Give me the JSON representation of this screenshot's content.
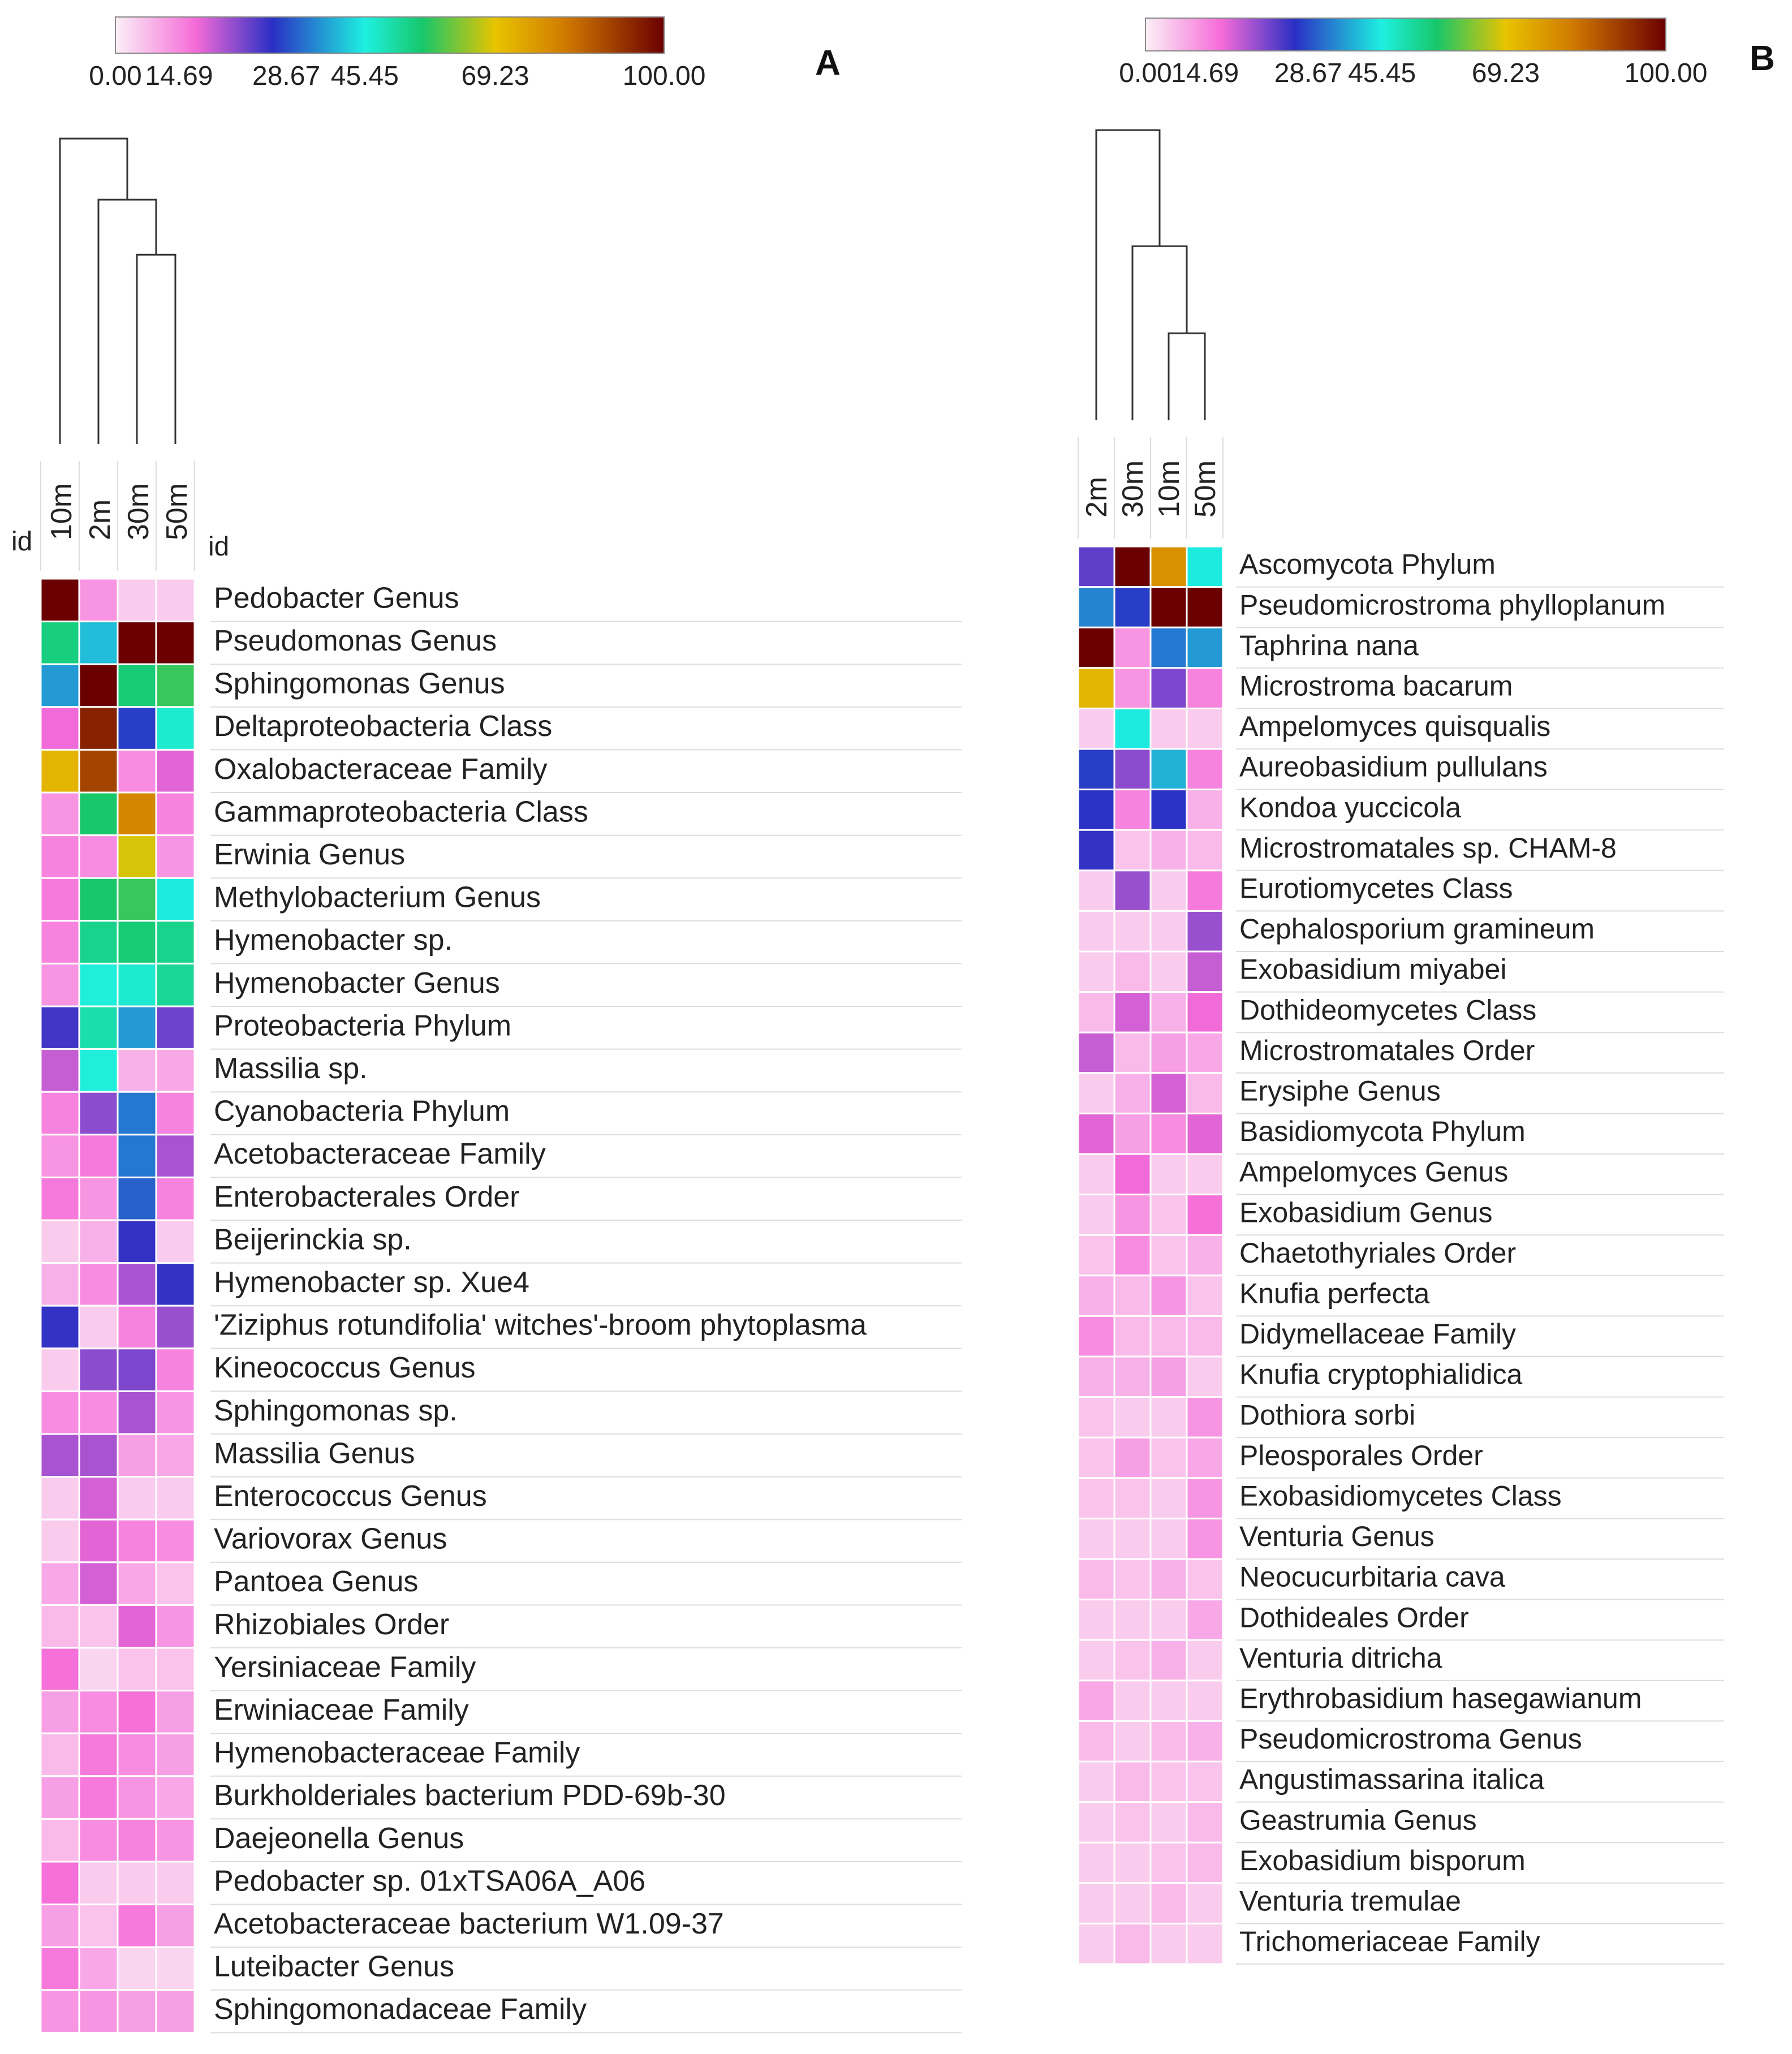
{
  "panels": [
    {
      "id": "A",
      "panel_label": "A",
      "colorbar": {
        "ticks": [
          "0.00",
          "14.69",
          "28.67",
          "45.45",
          "69.23",
          "100.00"
        ],
        "min": 0,
        "max": 100
      },
      "id_left_label": "id",
      "id_right_label": "id",
      "columns": [
        "10m",
        "2m",
        "30m",
        "50m"
      ],
      "dendrogram": [
        {
          "a": 2,
          "b": 3,
          "h": 0.62
        },
        {
          "a": 1,
          "b": 4,
          "h": 0.8
        },
        {
          "a": 0,
          "b": 5,
          "h": 1.0
        }
      ],
      "rows": [
        {
          "label": "Pedobacter Genus",
          "values": [
            100,
            10,
            4,
            4
          ]
        },
        {
          "label": "Pseudomonas Genus",
          "values": [
            54,
            41,
            100,
            100
          ]
        },
        {
          "label": "Sphingomonas Genus",
          "values": [
            38,
            100,
            55,
            58
          ]
        },
        {
          "label": "Deltaproteobacteria Class",
          "values": [
            15,
            95,
            30,
            47
          ]
        },
        {
          "label": "Oxalobacteraceae Family",
          "values": [
            72,
            90,
            11,
            16
          ]
        },
        {
          "label": "Gammaproteobacteria Class",
          "values": [
            10,
            56,
            80,
            12
          ]
        },
        {
          "label": "Erwinia Genus",
          "values": [
            12,
            11,
            68,
            10
          ]
        },
        {
          "label": "Methylobacterium Genus",
          "values": [
            13,
            56,
            58,
            45
          ]
        },
        {
          "label": "Hymenobacter sp.",
          "values": [
            12,
            53,
            55,
            53
          ]
        },
        {
          "label": "Hymenobacter Genus",
          "values": [
            10,
            46,
            47,
            52
          ]
        },
        {
          "label": "Proteobacteria Phylum",
          "values": [
            27,
            50,
            38,
            24
          ]
        },
        {
          "label": "Massilia sp.",
          "values": [
            18,
            46,
            7,
            8
          ]
        },
        {
          "label": "Cyanobacteria Phylum",
          "values": [
            12,
            22,
            35,
            12
          ]
        },
        {
          "label": "Acetobacteraceae Family",
          "values": [
            10,
            13,
            35,
            20
          ]
        },
        {
          "label": "Enterobacterales Order",
          "values": [
            13,
            10,
            33,
            12
          ]
        },
        {
          "label": "Beijerinckia sp.",
          "values": [
            4,
            7,
            28,
            4
          ]
        },
        {
          "label": "Hymenobacter sp. Xue4",
          "values": [
            7,
            11,
            20,
            28
          ]
        },
        {
          "label": "'Ziziphus rotundifolia' witches'-broom phytoplasma",
          "values": [
            28,
            4,
            12,
            21
          ]
        },
        {
          "label": "Kineococcus Genus",
          "values": [
            4,
            22,
            23,
            12
          ]
        },
        {
          "label": "Sphingomonas sp.",
          "values": [
            11,
            11,
            20,
            10
          ]
        },
        {
          "label": "Massilia Genus",
          "values": [
            20,
            20,
            9,
            8
          ]
        },
        {
          "label": "Enterococcus Genus",
          "values": [
            4,
            17,
            4,
            4
          ]
        },
        {
          "label": "Variovorax Genus",
          "values": [
            4,
            16,
            12,
            11
          ]
        },
        {
          "label": "Pantoea Genus",
          "values": [
            8,
            17,
            8,
            5
          ]
        },
        {
          "label": "Rhizobiales Order",
          "values": [
            6,
            5,
            16,
            10
          ]
        },
        {
          "label": "Yersiniaceae Family",
          "values": [
            14,
            3,
            5,
            5
          ]
        },
        {
          "label": "Erwiniaceae Family",
          "values": [
            9,
            11,
            14,
            9
          ]
        },
        {
          "label": "Hymenobacteraceae Family",
          "values": [
            6,
            13,
            11,
            9
          ]
        },
        {
          "label": "Burkholderiales bacterium PDD-69b-30",
          "values": [
            9,
            13,
            10,
            8
          ]
        },
        {
          "label": "Daejeonella Genus",
          "values": [
            6,
            11,
            12,
            10
          ]
        },
        {
          "label": "Pedobacter sp. 01xTSA06A_A06",
          "values": [
            14,
            4,
            4,
            4
          ]
        },
        {
          "label": "Acetobacteraceae bacterium W1.09-37",
          "values": [
            9,
            5,
            13,
            9
          ]
        },
        {
          "label": "Luteibacter Genus",
          "values": [
            13,
            8,
            3,
            3
          ]
        },
        {
          "label": "Sphingomonadaceae Family",
          "values": [
            10,
            10,
            9,
            9
          ]
        }
      ]
    },
    {
      "id": "B",
      "panel_label": "B",
      "colorbar": {
        "ticks": [
          "0.00",
          "14.69",
          "28.67",
          "45.45",
          "69.23",
          "100.00"
        ],
        "min": 0,
        "max": 100
      },
      "columns": [
        "2m",
        "30m",
        "10m",
        "50m"
      ],
      "dendrogram": [
        {
          "a": 2,
          "b": 3,
          "h": 0.3
        },
        {
          "a": 1,
          "b": 4,
          "h": 0.6
        },
        {
          "a": 0,
          "b": 5,
          "h": 1.0
        }
      ],
      "rows": [
        {
          "label": "Ascomycota Phylum",
          "values": [
            25,
            100,
            78,
            45
          ]
        },
        {
          "label": "Pseudomicrostroma phylloplanum",
          "values": [
            36,
            30,
            100,
            100
          ]
        },
        {
          "label": "Taphrina nana",
          "values": [
            100,
            10,
            35,
            38
          ]
        },
        {
          "label": "Microstroma bacarum",
          "values": [
            72,
            10,
            23,
            12
          ]
        },
        {
          "label": "Ampelomyces quisqualis",
          "values": [
            4,
            45,
            4,
            4
          ]
        },
        {
          "label": "Aureobasidium pullulans",
          "values": [
            30,
            22,
            40,
            12
          ]
        },
        {
          "label": "Kondoa yuccicola",
          "values": [
            29,
            12,
            29,
            7
          ]
        },
        {
          "label": "Microstromatales sp. CHAM-8",
          "values": [
            28,
            5,
            7,
            6
          ]
        },
        {
          "label": "Eurotiomycetes Class",
          "values": [
            4,
            21,
            4,
            13
          ]
        },
        {
          "label": "Cephalosporium gramineum",
          "values": [
            4,
            4,
            4,
            21
          ]
        },
        {
          "label": "Exobasidium miyabei",
          "values": [
            4,
            6,
            4,
            18
          ]
        },
        {
          "label": "Dothideomycetes Class",
          "values": [
            6,
            17,
            7,
            15
          ]
        },
        {
          "label": "Microstromatales Order",
          "values": [
            18,
            6,
            9,
            8
          ]
        },
        {
          "label": "Erysiphe Genus",
          "values": [
            4,
            7,
            17,
            6
          ]
        },
        {
          "label": "Basidiomycota Phylum",
          "values": [
            16,
            9,
            11,
            16
          ]
        },
        {
          "label": "Ampelomyces Genus",
          "values": [
            4,
            15,
            4,
            4
          ]
        },
        {
          "label": "Exobasidium Genus",
          "values": [
            4,
            10,
            5,
            14
          ]
        },
        {
          "label": "Chaetothyriales Order",
          "values": [
            5,
            11,
            5,
            7
          ]
        },
        {
          "label": "Knufia perfecta",
          "values": [
            7,
            6,
            10,
            5
          ]
        },
        {
          "label": "Didymellaceae Family",
          "values": [
            11,
            6,
            6,
            6
          ]
        },
        {
          "label": "Knufia cryptophialidica",
          "values": [
            7,
            7,
            9,
            4
          ]
        },
        {
          "label": "Dothiora sorbi",
          "values": [
            5,
            4,
            4,
            10
          ]
        },
        {
          "label": "Pleosporales Order",
          "values": [
            5,
            9,
            5,
            8
          ]
        },
        {
          "label": "Exobasidiomycetes Class",
          "values": [
            5,
            5,
            4,
            10
          ]
        },
        {
          "label": "Venturia Genus",
          "values": [
            4,
            4,
            4,
            10
          ]
        },
        {
          "label": "Neocucurbitaria cava",
          "values": [
            6,
            5,
            7,
            5
          ]
        },
        {
          "label": "Dothideales Order",
          "values": [
            4,
            4,
            4,
            8
          ]
        },
        {
          "label": "Venturia ditricha",
          "values": [
            4,
            5,
            7,
            4
          ]
        },
        {
          "label": "Erythrobasidium hasegawianum",
          "values": [
            8,
            4,
            4,
            4
          ]
        },
        {
          "label": "Pseudomicrostroma Genus",
          "values": [
            6,
            4,
            6,
            7
          ]
        },
        {
          "label": "Angustimassarina italica",
          "values": [
            4,
            6,
            5,
            5
          ]
        },
        {
          "label": "Geastrumia Genus",
          "values": [
            4,
            5,
            4,
            6
          ]
        },
        {
          "label": "Exobasidium bisporum",
          "values": [
            4,
            4,
            5,
            6
          ]
        },
        {
          "label": "Venturia tremulae",
          "values": [
            4,
            4,
            6,
            4
          ]
        },
        {
          "label": "Trichomeriaceae Family",
          "values": [
            4,
            6,
            4,
            4
          ]
        }
      ]
    }
  ],
  "colors": {
    "scale": [
      "#fbf0f6",
      "#f56bd8",
      "#2a2fc4",
      "#1ef0e0",
      "#17c76a",
      "#e8c400",
      "#d07a00",
      "#6a0000"
    ],
    "scale_stops": [
      0,
      14.69,
      28.67,
      45.45,
      56,
      69.23,
      82,
      100
    ],
    "text": "#222222",
    "line": "#333333",
    "gridline": "#dddddd"
  },
  "chart_data": [
    {
      "type": "heatmap",
      "title": "A",
      "x": [
        "10m",
        "2m",
        "30m",
        "50m"
      ],
      "y": [
        "Pedobacter Genus",
        "Pseudomonas Genus",
        "Sphingomonas Genus",
        "Deltaproteobacteria Class",
        "Oxalobacteraceae Family",
        "Gammaproteobacteria Class",
        "Erwinia Genus",
        "Methylobacterium Genus",
        "Hymenobacter sp.",
        "Hymenobacter Genus",
        "Proteobacteria Phylum",
        "Massilia sp.",
        "Cyanobacteria Phylum",
        "Acetobacteraceae Family",
        "Enterobacterales Order",
        "Beijerinckia sp.",
        "Hymenobacter sp. Xue4",
        "'Ziziphus rotundifolia' witches'-broom phytoplasma",
        "Kineococcus Genus",
        "Sphingomonas sp.",
        "Massilia Genus",
        "Enterococcus Genus",
        "Variovorax Genus",
        "Pantoea Genus",
        "Rhizobiales Order",
        "Yersiniaceae Family",
        "Erwiniaceae Family",
        "Hymenobacteraceae Family",
        "Burkholderiales bacterium PDD-69b-30",
        "Daejeonella Genus",
        "Pedobacter sp. 01xTSA06A_A06",
        "Acetobacteraceae bacterium W1.09-37",
        "Luteibacter Genus",
        "Sphingomonadaceae Family"
      ],
      "value_range": [
        0,
        100
      ],
      "colorbar_ticks": [
        0.0,
        14.69,
        28.67,
        45.45,
        69.23,
        100.0
      ]
    },
    {
      "type": "heatmap",
      "title": "B",
      "x": [
        "2m",
        "30m",
        "10m",
        "50m"
      ],
      "y": [
        "Ascomycota Phylum",
        "Pseudomicrostroma phylloplanum",
        "Taphrina nana",
        "Microstroma bacarum",
        "Ampelomyces quisqualis",
        "Aureobasidium pullulans",
        "Kondoa yuccicola",
        "Microstromatales sp. CHAM-8",
        "Eurotiomycetes Class",
        "Cephalosporium gramineum",
        "Exobasidium miyabei",
        "Dothideomycetes Class",
        "Microstromatales Order",
        "Erysiphe Genus",
        "Basidiomycota Phylum",
        "Ampelomyces Genus",
        "Exobasidium Genus",
        "Chaetothyriales Order",
        "Knufia perfecta",
        "Didymellaceae Family",
        "Knufia cryptophialidica",
        "Dothiora sorbi",
        "Pleosporales Order",
        "Exobasidiomycetes Class",
        "Venturia Genus",
        "Neocucurbitaria cava",
        "Dothideales Order",
        "Venturia ditricha",
        "Erythrobasidium hasegawianum",
        "Pseudomicrostroma Genus",
        "Angustimassarina italica",
        "Geastrumia Genus",
        "Exobasidium bisporum",
        "Venturia tremulae",
        "Trichomeriaceae Family"
      ],
      "value_range": [
        0,
        100
      ],
      "colorbar_ticks": [
        0.0,
        14.69,
        28.67,
        45.45,
        69.23,
        100.0
      ]
    }
  ]
}
